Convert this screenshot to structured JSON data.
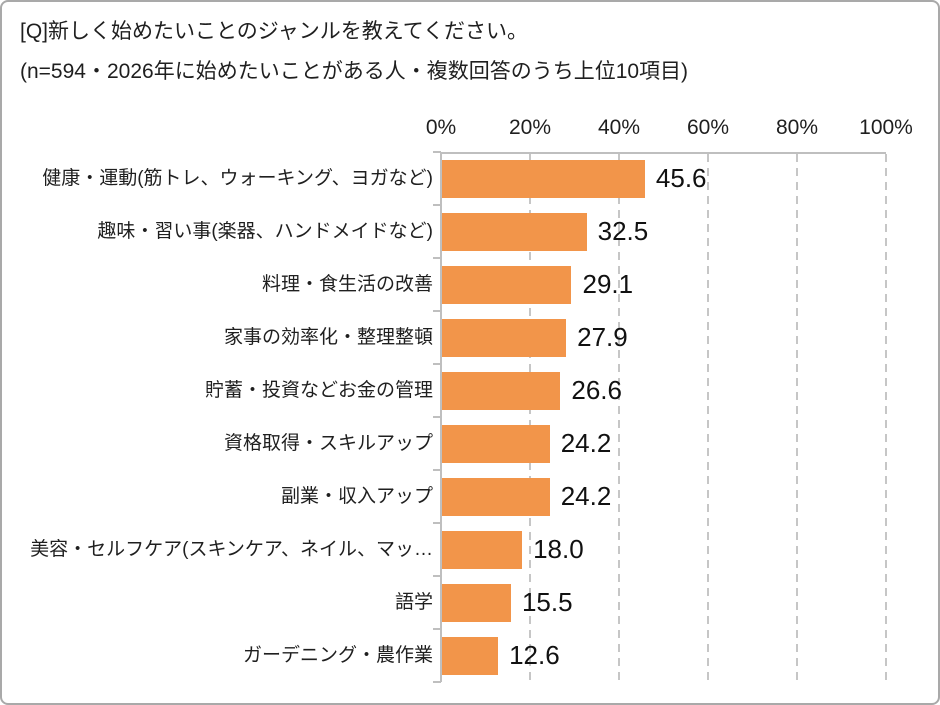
{
  "header": {
    "title": "[Q]新しく始めたいことのジャンルを教えてください。",
    "subtitle": "(n=594・2026年に始めたいことがある人・複数回答のうち上位10項目)"
  },
  "chart_data": {
    "type": "bar",
    "orientation": "horizontal",
    "title": "[Q]新しく始めたいことのジャンルを教えてください。",
    "subtitle": "(n=594・2026年に始めたいことがある人・複数回答のうち上位10項目)",
    "categories": [
      "健康・運動(筋トレ、ウォーキング、ヨガなど)",
      "趣味・習い事(楽器、ハンドメイドなど)",
      "料理・食生活の改善",
      "家事の効率化・整理整頓",
      "貯蓄・投資などお金の管理",
      "資格取得・スキルアップ",
      "副業・収入アップ",
      "美容・セルフケア(スキンケア、ネイル、マッ…",
      "語学",
      "ガーデニング・農作業"
    ],
    "values": [
      45.6,
      32.5,
      29.1,
      27.9,
      26.6,
      24.2,
      24.2,
      18.0,
      15.5,
      12.6
    ],
    "x_tick_labels": [
      "0%",
      "20%",
      "40%",
      "60%",
      "80%",
      "100%"
    ],
    "xlim": [
      0,
      100
    ],
    "grid": true,
    "legend": false,
    "bar_color": "#F2954A",
    "axis_color": "#BFBFBF",
    "gridline_color": "#C6C6C6",
    "text_color": "#1F1F1F"
  }
}
